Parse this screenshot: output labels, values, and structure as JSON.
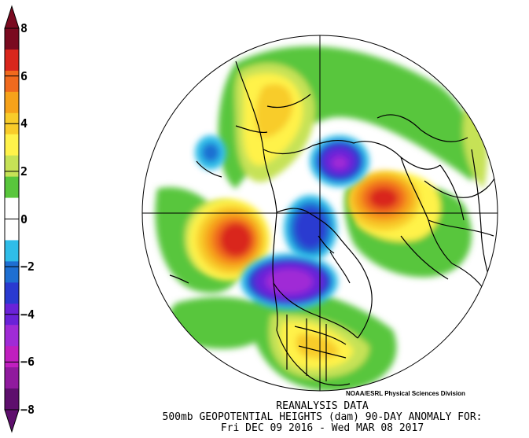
{
  "colorbar": {
    "ticks": [
      "8",
      "6",
      "4",
      "2",
      "0",
      "−2",
      "−4",
      "−6",
      "−8"
    ],
    "colors": [
      "#7a0a20",
      "#d9261c",
      "#f06a1e",
      "#f6a21a",
      "#f8cc2a",
      "#fff24a",
      "#c6e256",
      "#59c63c",
      "#ffffff",
      "#ffffff",
      "#2fbde8",
      "#1e6fd2",
      "#2a3ad0",
      "#6a22d8",
      "#a02bd6",
      "#c01fbf",
      "#901a9e",
      "#5e0f6d"
    ]
  },
  "map": {
    "projection": "north-polar-stereographic",
    "variable": "500mb geopotential height anomaly (dam)"
  },
  "credit": "NOAA/ESRL Physical Sciences Division",
  "caption": {
    "line1": "REANALYSIS DATA",
    "line2": "500mb GEOPOTENTIAL HEIGHTS (dam)   90-DAY ANOMALY FOR:",
    "line3": "Fri DEC 09 2016 - Wed MAR 08 2017"
  }
}
